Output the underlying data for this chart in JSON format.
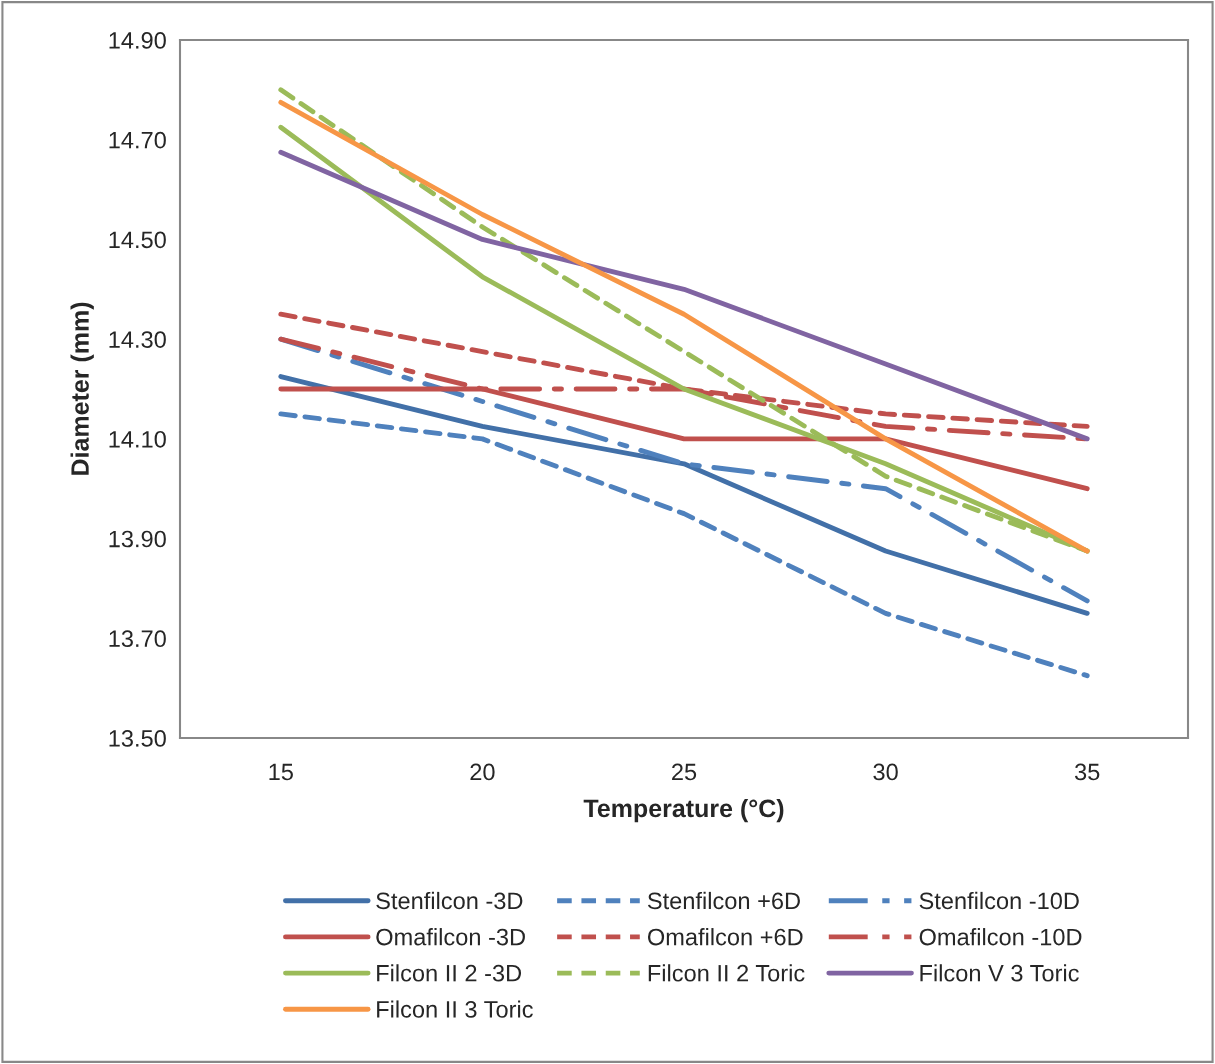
{
  "chart_data": {
    "type": "line",
    "xlabel": "Temperature (°C)",
    "ylabel": "Diameter (mm)",
    "categories": [
      "15",
      "20",
      "25",
      "30",
      "35"
    ],
    "ylim": [
      13.5,
      14.9
    ],
    "yticks": [
      {
        "value": 13.5,
        "label": "13.50"
      },
      {
        "value": 13.7,
        "label": "13.70"
      },
      {
        "value": 13.9,
        "label": "13.90"
      },
      {
        "value": 14.1,
        "label": "14.10"
      },
      {
        "value": 14.3,
        "label": "14.30"
      },
      {
        "value": 14.5,
        "label": "14.50"
      },
      {
        "value": 14.7,
        "label": "14.70"
      },
      {
        "value": 14.9,
        "label": "14.90"
      }
    ],
    "grid": false,
    "legend": "bottom",
    "marker": "none",
    "series": [
      {
        "name": "Stenfilcon -3D",
        "color": "#4270a8",
        "line_style": "solid",
        "values": [
          14.225,
          14.125,
          14.05,
          13.875,
          13.75
        ]
      },
      {
        "name": "Stenfilcon +6D",
        "color": "#4f81bd",
        "line_style": "dotted",
        "values": [
          14.15,
          14.1,
          13.95,
          13.75,
          13.625
        ]
      },
      {
        "name": "Stenfilcon -10D",
        "color": "#4f81bd",
        "line_style": "dashed",
        "values": [
          14.3,
          14.175,
          14.05,
          14.0,
          13.775
        ]
      },
      {
        "name": "Omafilcon -3D",
        "color": "#c0504d",
        "line_style": "solid",
        "values": [
          14.2,
          14.2,
          14.1,
          14.1,
          14.0
        ]
      },
      {
        "name": "Omafilcon +6D",
        "color": "#c0504d",
        "line_style": "dotted",
        "values": [
          14.35,
          14.275,
          14.2,
          14.15,
          14.125
        ]
      },
      {
        "name": "Omafilcon -10D",
        "color": "#c0504d",
        "line_style": "dashed",
        "values": [
          14.3,
          14.2,
          14.2,
          14.125,
          14.1
        ]
      },
      {
        "name": "Filcon II 2 -3D",
        "color": "#9bbb59",
        "line_style": "solid",
        "values": [
          14.725,
          14.425,
          14.2,
          14.05,
          13.875
        ]
      },
      {
        "name": "Filcon II 2 Toric",
        "color": "#9bbb59",
        "line_style": "dotted",
        "values": [
          14.8,
          14.525,
          14.275,
          14.025,
          13.875
        ]
      },
      {
        "name": "Filcon V 3 Toric",
        "color": "#8064a2",
        "line_style": "solid",
        "values": [
          14.675,
          14.5,
          14.4,
          14.25,
          14.1
        ]
      },
      {
        "name": "Filcon II 3 Toric",
        "color": "#f79646",
        "line_style": "solid",
        "values": [
          14.775,
          14.55,
          14.35,
          14.1,
          13.875
        ]
      }
    ]
  }
}
